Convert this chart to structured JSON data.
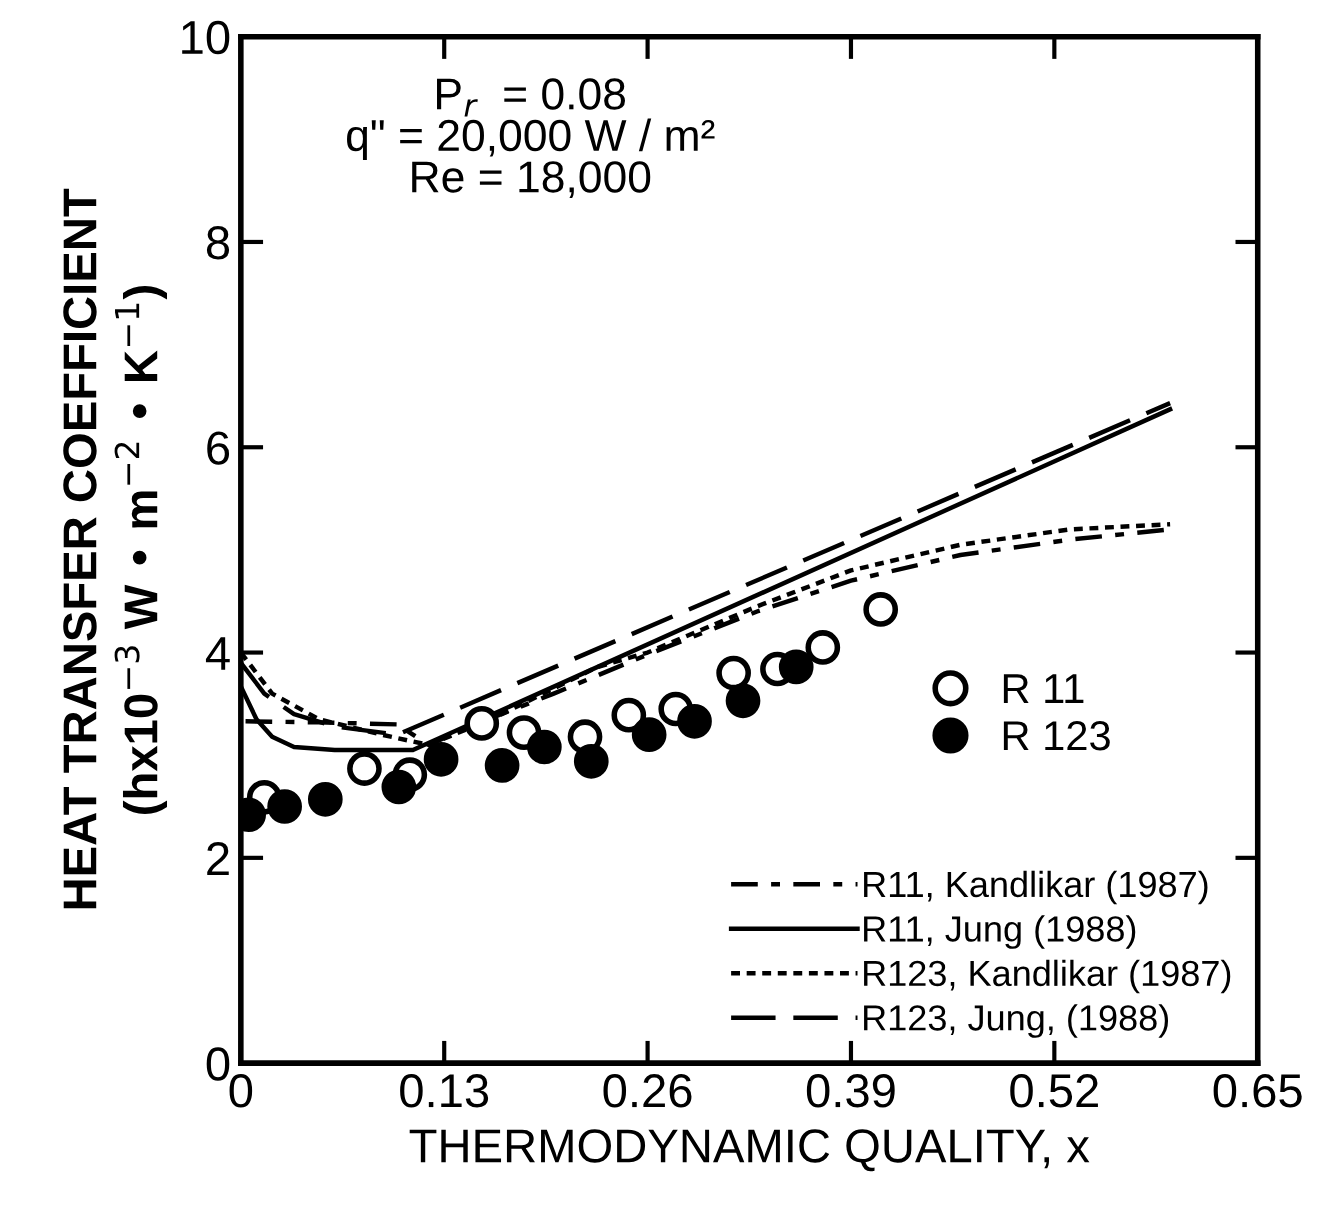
{
  "chart_data": {
    "type": "scatter",
    "xlabel": "THERMODYNAMIC QUALITY, x",
    "ylabel": "HEAT TRANSFER COEFFICIENT\n(hx10$^{−3}$ W • m$^{−2}$ • K$^{−1}$)",
    "annotations": [
      "P$_{r}$  = 0.08\nq\" = 20,000 W / m²\nRe = 18,000"
    ],
    "xlim": [
      0,
      0.65
    ],
    "xticks": [
      0,
      0.13,
      0.26,
      0.39,
      0.52,
      0.65
    ],
    "ylim": [
      0,
      10
    ],
    "yticks": [
      0,
      2,
      4,
      6,
      8,
      10
    ],
    "grid": false,
    "legend": "bottom right",
    "series": [
      {
        "name": "R 11",
        "marker": "circle",
        "color": "#ffffff",
        "x": [
          0.015,
          0.079,
          0.108,
          0.154,
          0.181,
          0.22,
          0.248,
          0.278,
          0.315,
          0.343,
          0.372,
          0.409
        ],
        "values": [
          2.59,
          2.87,
          2.81,
          3.31,
          3.22,
          3.18,
          3.39,
          3.45,
          3.8,
          3.84,
          4.05,
          4.42
        ]
      },
      {
        "name": "R 123",
        "marker": "circle",
        "color": "#000000",
        "x": [
          0.005,
          0.028,
          0.054,
          0.101,
          0.128,
          0.167,
          0.194,
          0.224,
          0.261,
          0.29,
          0.321,
          0.355
        ],
        "values": [
          2.42,
          2.5,
          2.57,
          2.69,
          2.96,
          2.9,
          3.08,
          2.94,
          3.2,
          3.33,
          3.53,
          3.86
        ]
      },
      {
        "name": "R11, Kandlikar (1987)",
        "type": "line",
        "line_style": "dashdot",
        "color": "#000000",
        "x": [
          0.003,
          0.05,
          0.1,
          0.12,
          0.15,
          0.2,
          0.26,
          0.33,
          0.39,
          0.46,
          0.53,
          0.594
        ],
        "values": [
          3.33,
          3.32,
          3.3,
          3.1,
          3.3,
          3.6,
          3.98,
          4.4,
          4.7,
          4.95,
          5.1,
          5.2
        ]
      },
      {
        "name": "R11, Jung (1988)",
        "type": "line",
        "line_style": "solid",
        "color": "#000000",
        "x": [
          0.0,
          0.01,
          0.02,
          0.034,
          0.06,
          0.11,
          0.594
        ],
        "values": [
          3.67,
          3.35,
          3.18,
          3.08,
          3.05,
          3.05,
          6.37
        ]
      },
      {
        "name": "R123, Kandlikar (1987)",
        "type": "line",
        "line_style": "dotted",
        "color": "#000000",
        "x": [
          0.0,
          0.02,
          0.05,
          0.09,
          0.12,
          0.16,
          0.2,
          0.228,
          0.26,
          0.33,
          0.39,
          0.46,
          0.53,
          0.594
        ],
        "values": [
          4.0,
          3.6,
          3.35,
          3.2,
          3.1,
          3.35,
          3.65,
          3.86,
          4.0,
          4.45,
          4.8,
          5.05,
          5.2,
          5.25
        ]
      },
      {
        "name": "R123, Jung, (1988)",
        "type": "line",
        "line_style": "dashed",
        "color": "#000000",
        "x": [
          0.0,
          0.015,
          0.034,
          0.06,
          0.1,
          0.594
        ],
        "values": [
          3.9,
          3.6,
          3.4,
          3.28,
          3.2,
          6.43
        ]
      }
    ]
  }
}
